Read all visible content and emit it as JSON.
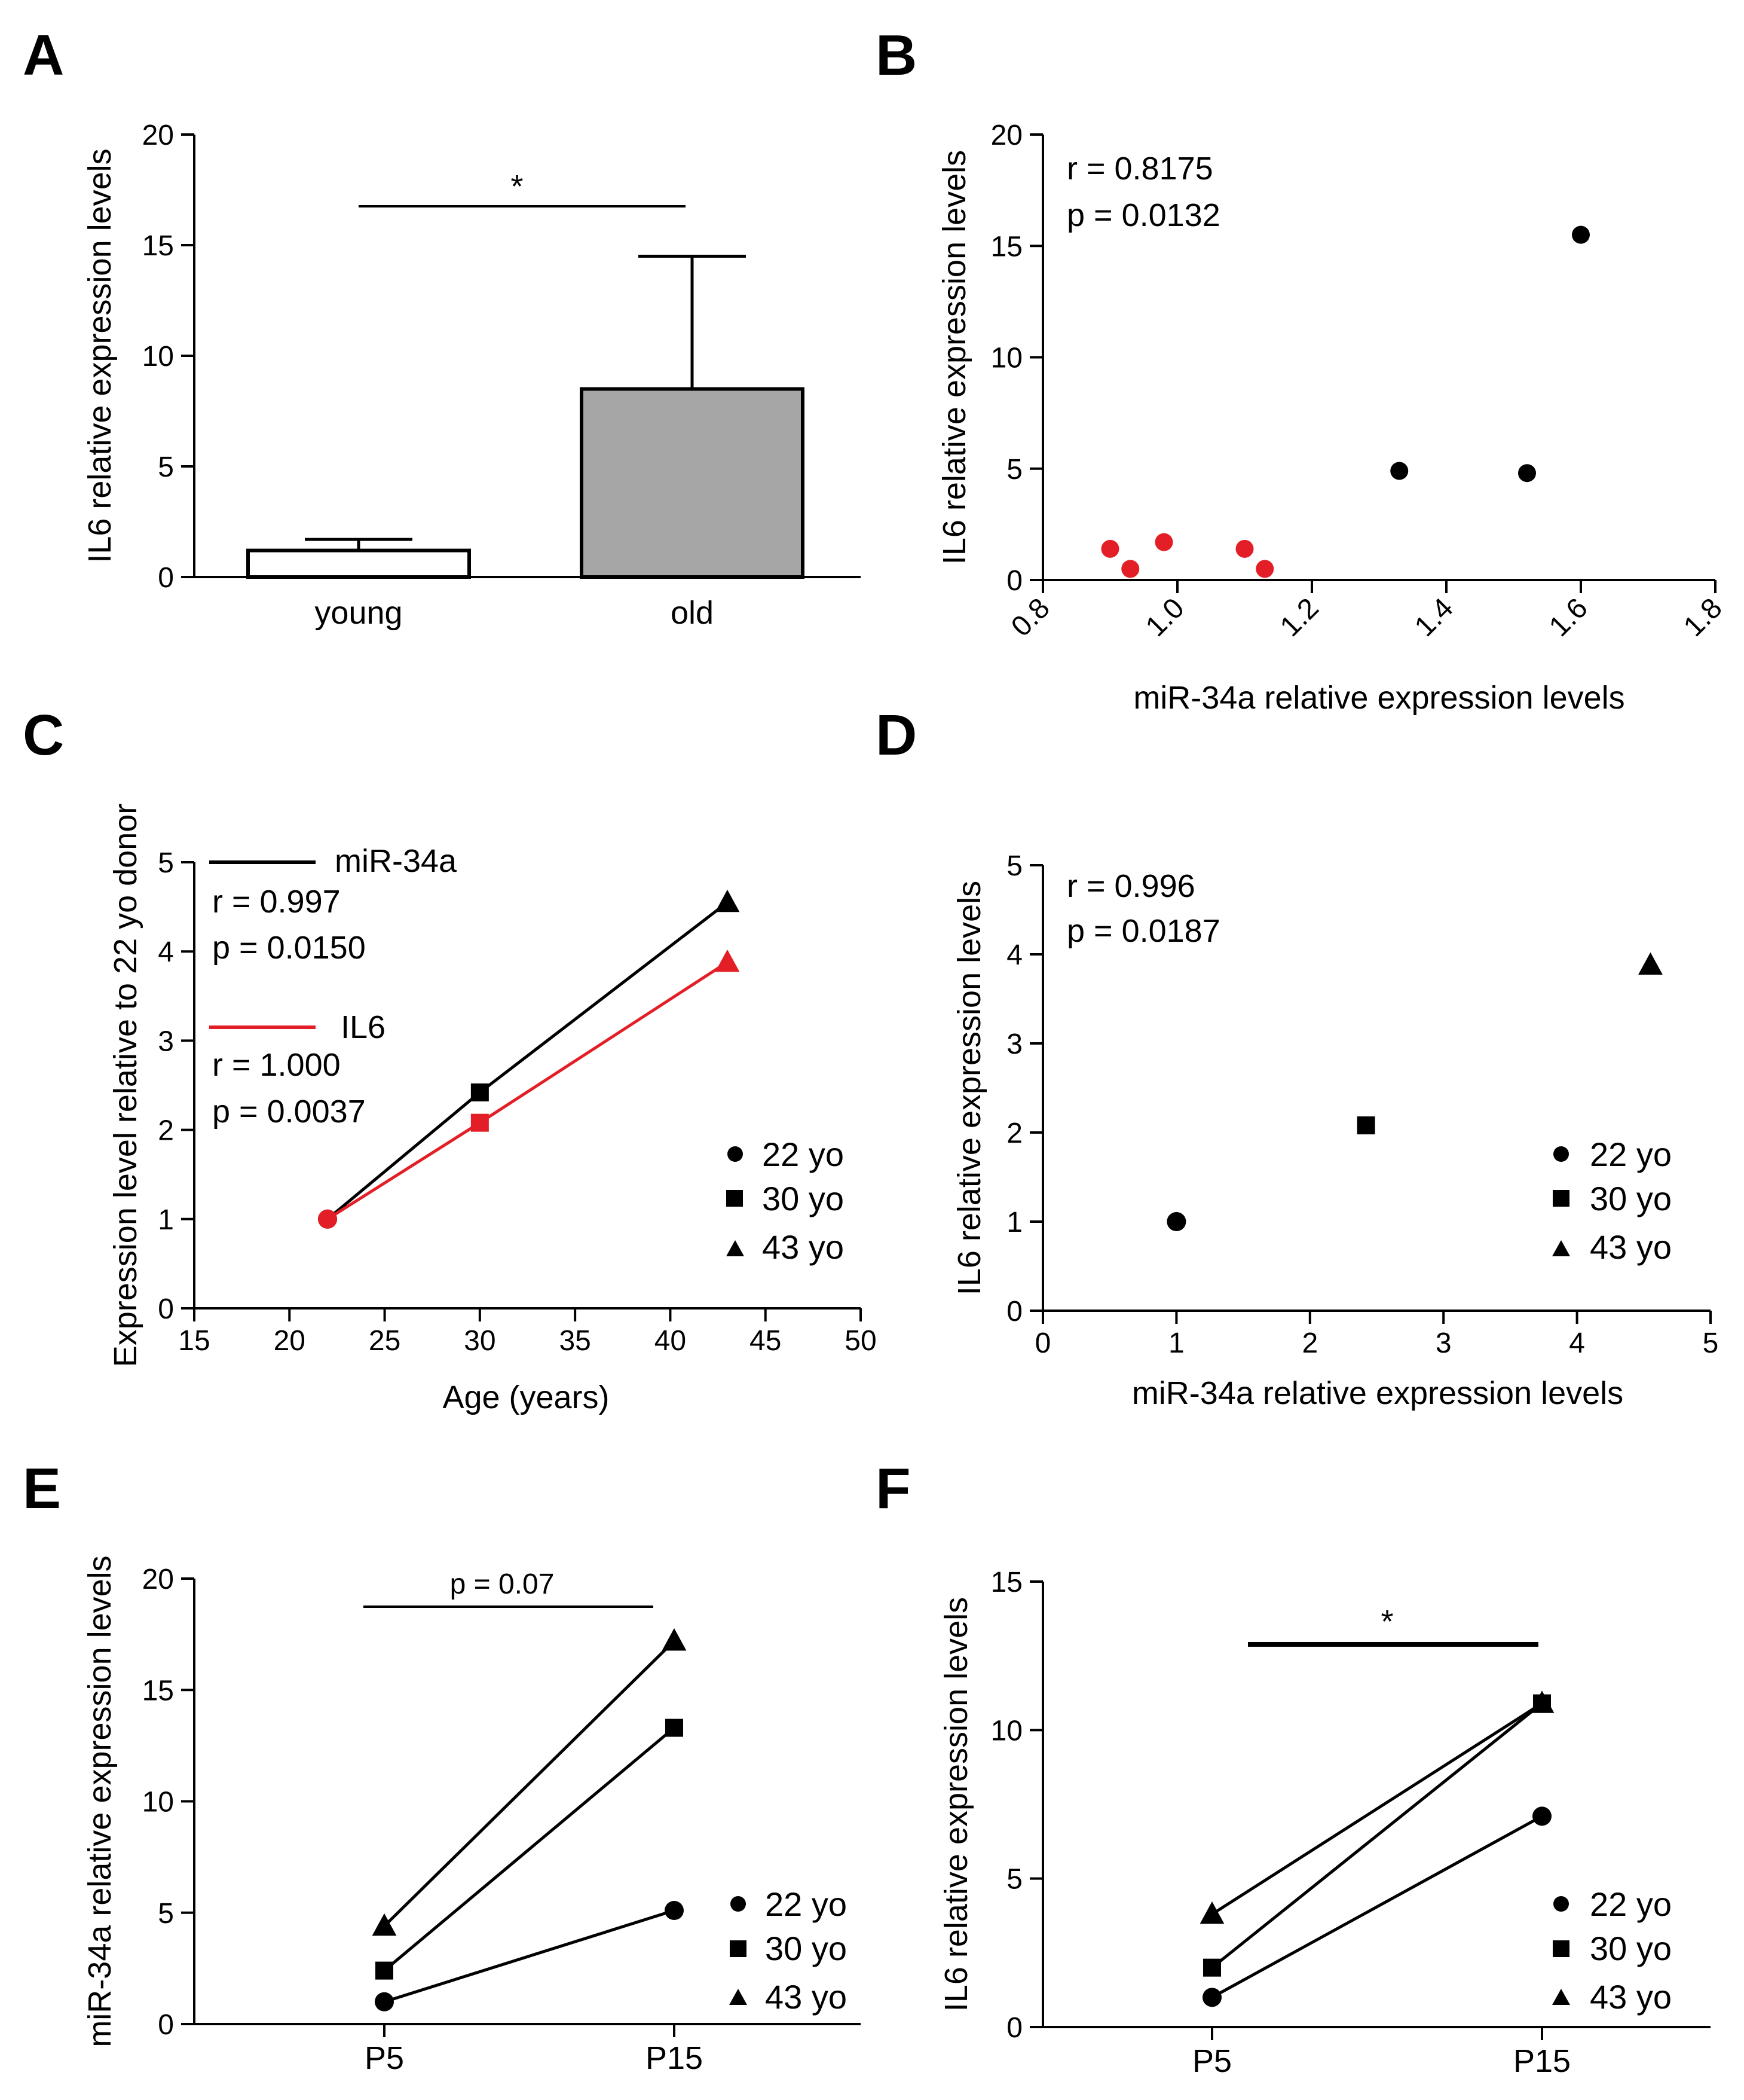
{
  "chart_data": [
    {
      "panel": "A",
      "type": "bar",
      "categories": [
        "young",
        "old"
      ],
      "values": [
        1.2,
        8.5
      ],
      "error": [
        0.5,
        6.0
      ],
      "colors": [
        "#ffffff",
        "#a6a6a6"
      ],
      "ylabel": "IL6 relative expression levels",
      "xlabel": "",
      "ylim": [
        0,
        20
      ],
      "yticks": [
        "0",
        "5",
        "10",
        "15",
        "20"
      ],
      "significance": "*"
    },
    {
      "panel": "B",
      "type": "scatter",
      "series": [
        {
          "name": "red",
          "color": "#e41e26",
          "x": [
            0.9,
            0.93,
            0.98,
            1.1,
            1.13
          ],
          "y": [
            1.4,
            0.5,
            1.7,
            1.4,
            0.5
          ]
        },
        {
          "name": "black",
          "color": "#000000",
          "x": [
            1.33,
            1.52,
            1.6
          ],
          "y": [
            4.9,
            4.8,
            15.5
          ]
        }
      ],
      "xlabel": "miR-34a  relative  expression levels",
      "ylabel": "IL6 relative expression levels",
      "xlim": [
        0.8,
        1.8
      ],
      "ylim": [
        0,
        20
      ],
      "xticks": [
        "0.8",
        "1.0",
        "1.2",
        "1.4",
        "1.6",
        "1.8"
      ],
      "yticks": [
        "0",
        "5",
        "10",
        "15",
        "20"
      ],
      "annotation": {
        "r": "r = 0.8175",
        "p": "p = 0.0132"
      }
    },
    {
      "panel": "C",
      "type": "line",
      "x": [
        22,
        30,
        43
      ],
      "series": [
        {
          "name": "miR-34a",
          "color": "#000000",
          "values": [
            1.0,
            2.42,
            4.55
          ],
          "r": "r = 0.997",
          "p": "p = 0.0150"
        },
        {
          "name": "IL6",
          "color": "#e41e26",
          "values": [
            1.0,
            2.08,
            3.88
          ],
          "r": "r = 1.000",
          "p": "p = 0.0037"
        }
      ],
      "xlabel": "Age (years)",
      "ylabel": "Expression level relative to 22 yo donor",
      "xlim": [
        15,
        50
      ],
      "ylim": [
        0,
        5
      ],
      "xticks": [
        "15",
        "20",
        "25",
        "30",
        "35",
        "40",
        "45",
        "50"
      ],
      "yticks": [
        "0",
        "1",
        "2",
        "3",
        "4",
        "5"
      ],
      "legend": [
        "22 yo",
        "30 yo",
        "43 yo"
      ]
    },
    {
      "panel": "D",
      "type": "scatter",
      "x": [
        1.0,
        2.42,
        4.55
      ],
      "y": [
        1.0,
        2.08,
        3.88
      ],
      "xlabel": "miR-34a relative expression levels",
      "ylabel": "IL6 relative expression levels",
      "xlim": [
        0,
        5
      ],
      "ylim": [
        0,
        5
      ],
      "xticks": [
        "0",
        "1",
        "2",
        "3",
        "4",
        "5"
      ],
      "yticks": [
        "0",
        "1",
        "2",
        "3",
        "4",
        "5"
      ],
      "annotation": {
        "r": "r = 0.996",
        "p": "p = 0.0187"
      },
      "legend": [
        "22 yo",
        "30 yo",
        "43 yo"
      ]
    },
    {
      "panel": "E",
      "type": "line",
      "categories": [
        "P5",
        "P15"
      ],
      "series": [
        {
          "name": "22 yo",
          "values": [
            1.0,
            5.1
          ]
        },
        {
          "name": "30 yo",
          "values": [
            2.4,
            13.3
          ]
        },
        {
          "name": "43 yo",
          "values": [
            4.4,
            17.2
          ]
        }
      ],
      "ylabel": "miR-34a relative expression levels",
      "ylim": [
        0,
        20
      ],
      "yticks": [
        "0",
        "5",
        "10",
        "15",
        "20"
      ],
      "significance": "p = 0.07",
      "legend": [
        "22 yo",
        "30 yo",
        "43 yo"
      ]
    },
    {
      "panel": "F",
      "type": "line",
      "categories": [
        "P5",
        "P15"
      ],
      "series": [
        {
          "name": "22 yo",
          "values": [
            1.0,
            7.1
          ]
        },
        {
          "name": "30 yo",
          "values": [
            2.0,
            10.9
          ]
        },
        {
          "name": "43 yo",
          "values": [
            3.8,
            10.9
          ]
        }
      ],
      "ylabel": "IL6 relative expression levels",
      "ylim": [
        0,
        15
      ],
      "yticks": [
        "0",
        "5",
        "10",
        "15"
      ],
      "significance": "*",
      "legend": [
        "22 yo",
        "30 yo",
        "43 yo"
      ]
    }
  ]
}
